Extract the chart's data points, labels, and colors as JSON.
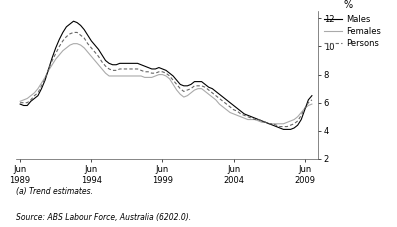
{
  "title": "",
  "ylabel": "%",
  "ylim": [
    2,
    12.5
  ],
  "yticks": [
    2,
    4,
    6,
    8,
    10,
    12
  ],
  "xlim_start": 1988.7,
  "xlim_end": 2009.9,
  "xtick_years": [
    1989,
    1994,
    1999,
    2004,
    2009
  ],
  "line_color_males": "#000000",
  "line_color_females": "#aaaaaa",
  "line_color_persons": "#666666",
  "legend_labels": [
    "Males",
    "Females",
    "Persons"
  ],
  "footnote1": "(a) Trend estimates.",
  "footnote2": "Source: ABS Labour Force, Australia (6202.0).",
  "males": [
    [
      1989.0,
      5.9
    ],
    [
      1989.25,
      5.8
    ],
    [
      1989.5,
      5.8
    ],
    [
      1989.75,
      6.1
    ],
    [
      1990.0,
      6.3
    ],
    [
      1990.25,
      6.5
    ],
    [
      1990.5,
      7.0
    ],
    [
      1990.75,
      7.6
    ],
    [
      1991.0,
      8.4
    ],
    [
      1991.25,
      9.2
    ],
    [
      1991.5,
      9.9
    ],
    [
      1991.75,
      10.5
    ],
    [
      1992.0,
      11.0
    ],
    [
      1992.25,
      11.4
    ],
    [
      1992.5,
      11.6
    ],
    [
      1992.75,
      11.8
    ],
    [
      1993.0,
      11.7
    ],
    [
      1993.25,
      11.5
    ],
    [
      1993.5,
      11.2
    ],
    [
      1993.75,
      10.8
    ],
    [
      1994.0,
      10.4
    ],
    [
      1994.25,
      10.1
    ],
    [
      1994.5,
      9.8
    ],
    [
      1994.75,
      9.4
    ],
    [
      1995.0,
      9.0
    ],
    [
      1995.25,
      8.8
    ],
    [
      1995.5,
      8.7
    ],
    [
      1995.75,
      8.7
    ],
    [
      1996.0,
      8.8
    ],
    [
      1996.25,
      8.8
    ],
    [
      1996.5,
      8.8
    ],
    [
      1996.75,
      8.8
    ],
    [
      1997.0,
      8.8
    ],
    [
      1997.25,
      8.8
    ],
    [
      1997.5,
      8.7
    ],
    [
      1997.75,
      8.6
    ],
    [
      1998.0,
      8.5
    ],
    [
      1998.25,
      8.4
    ],
    [
      1998.5,
      8.4
    ],
    [
      1998.75,
      8.5
    ],
    [
      1999.0,
      8.4
    ],
    [
      1999.25,
      8.3
    ],
    [
      1999.5,
      8.1
    ],
    [
      1999.75,
      7.9
    ],
    [
      2000.0,
      7.6
    ],
    [
      2000.25,
      7.3
    ],
    [
      2000.5,
      7.2
    ],
    [
      2000.75,
      7.2
    ],
    [
      2001.0,
      7.3
    ],
    [
      2001.25,
      7.5
    ],
    [
      2001.5,
      7.5
    ],
    [
      2001.75,
      7.5
    ],
    [
      2002.0,
      7.3
    ],
    [
      2002.25,
      7.1
    ],
    [
      2002.5,
      7.0
    ],
    [
      2002.75,
      6.8
    ],
    [
      2003.0,
      6.6
    ],
    [
      2003.25,
      6.4
    ],
    [
      2003.5,
      6.2
    ],
    [
      2003.75,
      6.0
    ],
    [
      2004.0,
      5.8
    ],
    [
      2004.25,
      5.6
    ],
    [
      2004.5,
      5.4
    ],
    [
      2004.75,
      5.2
    ],
    [
      2005.0,
      5.1
    ],
    [
      2005.25,
      5.0
    ],
    [
      2005.5,
      4.9
    ],
    [
      2005.75,
      4.8
    ],
    [
      2006.0,
      4.7
    ],
    [
      2006.25,
      4.6
    ],
    [
      2006.5,
      4.5
    ],
    [
      2006.75,
      4.4
    ],
    [
      2007.0,
      4.3
    ],
    [
      2007.25,
      4.2
    ],
    [
      2007.5,
      4.1
    ],
    [
      2007.75,
      4.1
    ],
    [
      2008.0,
      4.1
    ],
    [
      2008.25,
      4.2
    ],
    [
      2008.5,
      4.4
    ],
    [
      2008.75,
      4.8
    ],
    [
      2009.0,
      5.5
    ],
    [
      2009.25,
      6.2
    ],
    [
      2009.5,
      6.5
    ]
  ],
  "females": [
    [
      1989.0,
      6.1
    ],
    [
      1989.25,
      6.2
    ],
    [
      1989.5,
      6.3
    ],
    [
      1989.75,
      6.5
    ],
    [
      1990.0,
      6.7
    ],
    [
      1990.25,
      7.0
    ],
    [
      1990.5,
      7.4
    ],
    [
      1990.75,
      7.8
    ],
    [
      1991.0,
      8.3
    ],
    [
      1991.25,
      8.7
    ],
    [
      1991.5,
      9.1
    ],
    [
      1991.75,
      9.4
    ],
    [
      1992.0,
      9.7
    ],
    [
      1992.25,
      9.9
    ],
    [
      1992.5,
      10.1
    ],
    [
      1992.75,
      10.2
    ],
    [
      1993.0,
      10.2
    ],
    [
      1993.25,
      10.1
    ],
    [
      1993.5,
      9.9
    ],
    [
      1993.75,
      9.6
    ],
    [
      1994.0,
      9.3
    ],
    [
      1994.25,
      9.0
    ],
    [
      1994.5,
      8.7
    ],
    [
      1994.75,
      8.4
    ],
    [
      1995.0,
      8.1
    ],
    [
      1995.25,
      7.9
    ],
    [
      1995.5,
      7.9
    ],
    [
      1995.75,
      7.9
    ],
    [
      1996.0,
      7.9
    ],
    [
      1996.25,
      7.9
    ],
    [
      1996.5,
      7.9
    ],
    [
      1996.75,
      7.9
    ],
    [
      1997.0,
      7.9
    ],
    [
      1997.25,
      7.9
    ],
    [
      1997.5,
      7.9
    ],
    [
      1997.75,
      7.8
    ],
    [
      1998.0,
      7.8
    ],
    [
      1998.25,
      7.8
    ],
    [
      1998.5,
      7.9
    ],
    [
      1998.75,
      8.0
    ],
    [
      1999.0,
      8.0
    ],
    [
      1999.25,
      7.9
    ],
    [
      1999.5,
      7.7
    ],
    [
      1999.75,
      7.3
    ],
    [
      2000.0,
      6.9
    ],
    [
      2000.25,
      6.6
    ],
    [
      2000.5,
      6.4
    ],
    [
      2000.75,
      6.5
    ],
    [
      2001.0,
      6.7
    ],
    [
      2001.25,
      6.9
    ],
    [
      2001.5,
      7.0
    ],
    [
      2001.75,
      7.0
    ],
    [
      2002.0,
      6.8
    ],
    [
      2002.25,
      6.6
    ],
    [
      2002.5,
      6.4
    ],
    [
      2002.75,
      6.2
    ],
    [
      2003.0,
      5.9
    ],
    [
      2003.25,
      5.7
    ],
    [
      2003.5,
      5.5
    ],
    [
      2003.75,
      5.3
    ],
    [
      2004.0,
      5.2
    ],
    [
      2004.25,
      5.1
    ],
    [
      2004.5,
      5.0
    ],
    [
      2004.75,
      4.9
    ],
    [
      2005.0,
      4.8
    ],
    [
      2005.25,
      4.8
    ],
    [
      2005.5,
      4.8
    ],
    [
      2005.75,
      4.7
    ],
    [
      2006.0,
      4.6
    ],
    [
      2006.25,
      4.6
    ],
    [
      2006.5,
      4.5
    ],
    [
      2006.75,
      4.5
    ],
    [
      2007.0,
      4.5
    ],
    [
      2007.25,
      4.5
    ],
    [
      2007.5,
      4.5
    ],
    [
      2007.75,
      4.6
    ],
    [
      2008.0,
      4.7
    ],
    [
      2008.25,
      4.8
    ],
    [
      2008.5,
      5.0
    ],
    [
      2008.75,
      5.3
    ],
    [
      2009.0,
      5.6
    ],
    [
      2009.25,
      5.8
    ],
    [
      2009.5,
      5.9
    ]
  ],
  "persons": [
    [
      1989.0,
      6.0
    ],
    [
      1989.25,
      6.0
    ],
    [
      1989.5,
      6.0
    ],
    [
      1989.75,
      6.2
    ],
    [
      1990.0,
      6.5
    ],
    [
      1990.25,
      6.7
    ],
    [
      1990.5,
      7.2
    ],
    [
      1990.75,
      7.7
    ],
    [
      1991.0,
      8.4
    ],
    [
      1991.25,
      9.0
    ],
    [
      1991.5,
      9.5
    ],
    [
      1991.75,
      10.0
    ],
    [
      1992.0,
      10.4
    ],
    [
      1992.25,
      10.7
    ],
    [
      1992.5,
      10.9
    ],
    [
      1992.75,
      11.0
    ],
    [
      1993.0,
      11.0
    ],
    [
      1993.25,
      10.8
    ],
    [
      1993.5,
      10.6
    ],
    [
      1993.75,
      10.2
    ],
    [
      1994.0,
      9.9
    ],
    [
      1994.25,
      9.6
    ],
    [
      1994.5,
      9.3
    ],
    [
      1994.75,
      8.9
    ],
    [
      1995.0,
      8.6
    ],
    [
      1995.25,
      8.4
    ],
    [
      1995.5,
      8.3
    ],
    [
      1995.75,
      8.3
    ],
    [
      1996.0,
      8.4
    ],
    [
      1996.25,
      8.4
    ],
    [
      1996.5,
      8.4
    ],
    [
      1996.75,
      8.4
    ],
    [
      1997.0,
      8.4
    ],
    [
      1997.25,
      8.4
    ],
    [
      1997.5,
      8.3
    ],
    [
      1997.75,
      8.2
    ],
    [
      1998.0,
      8.2
    ],
    [
      1998.25,
      8.1
    ],
    [
      1998.5,
      8.1
    ],
    [
      1998.75,
      8.2
    ],
    [
      1999.0,
      8.2
    ],
    [
      1999.25,
      8.1
    ],
    [
      1999.5,
      7.9
    ],
    [
      1999.75,
      7.6
    ],
    [
      2000.0,
      7.3
    ],
    [
      2000.25,
      7.0
    ],
    [
      2000.5,
      6.8
    ],
    [
      2000.75,
      6.9
    ],
    [
      2001.0,
      7.0
    ],
    [
      2001.25,
      7.2
    ],
    [
      2001.5,
      7.2
    ],
    [
      2001.75,
      7.2
    ],
    [
      2002.0,
      7.1
    ],
    [
      2002.25,
      6.9
    ],
    [
      2002.5,
      6.7
    ],
    [
      2002.75,
      6.5
    ],
    [
      2003.0,
      6.3
    ],
    [
      2003.25,
      6.1
    ],
    [
      2003.5,
      5.9
    ],
    [
      2003.75,
      5.7
    ],
    [
      2004.0,
      5.5
    ],
    [
      2004.25,
      5.4
    ],
    [
      2004.5,
      5.2
    ],
    [
      2004.75,
      5.1
    ],
    [
      2005.0,
      5.0
    ],
    [
      2005.25,
      4.9
    ],
    [
      2005.5,
      4.8
    ],
    [
      2005.75,
      4.8
    ],
    [
      2006.0,
      4.7
    ],
    [
      2006.25,
      4.6
    ],
    [
      2006.5,
      4.5
    ],
    [
      2006.75,
      4.5
    ],
    [
      2007.0,
      4.4
    ],
    [
      2007.25,
      4.3
    ],
    [
      2007.5,
      4.3
    ],
    [
      2007.75,
      4.3
    ],
    [
      2008.0,
      4.4
    ],
    [
      2008.25,
      4.5
    ],
    [
      2008.5,
      4.7
    ],
    [
      2008.75,
      5.1
    ],
    [
      2009.0,
      5.6
    ],
    [
      2009.25,
      6.0
    ],
    [
      2009.5,
      6.2
    ]
  ]
}
